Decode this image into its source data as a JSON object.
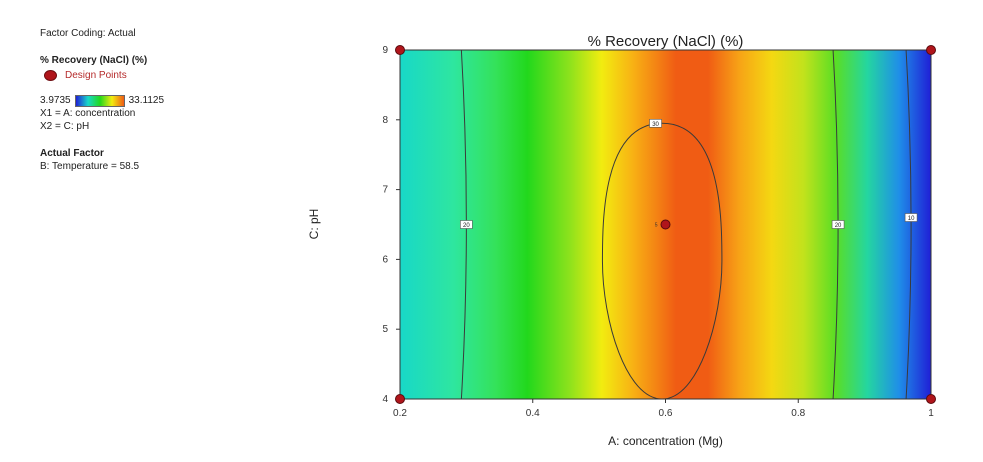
{
  "legend": {
    "factor_coding": "Factor Coding: Actual",
    "response_title": "% Recovery (NaCl) (%)",
    "design_points_label": "Design Points",
    "scale_min": "3.9735",
    "scale_max": "33.1125",
    "x1_label": "X1 = A: concentration",
    "x2_label": "X2 = C: pH",
    "actual_factor_heading": "Actual Factor",
    "actual_factor_value": "B: Temperature = 58.5"
  },
  "colors": {
    "low": "#1f1fd6",
    "mid_low": "#18d8c8",
    "mid": "#22d81c",
    "mid_high": "#f2ec10",
    "high": "#f05c14",
    "design_point": "#b0151b"
  },
  "chart_data": {
    "type": "contour",
    "title": "% Recovery (NaCl) (%)",
    "xlabel": "A: concentration (Mg)",
    "ylabel": "C: pH",
    "xlim": [
      0.2,
      1.0
    ],
    "ylim": [
      4,
      9
    ],
    "xticks": [
      0.2,
      0.4,
      0.6,
      0.8,
      1
    ],
    "xtick_labels": [
      "0.2",
      "0.4",
      "0.6",
      "0.8",
      "1"
    ],
    "yticks": [
      4,
      5,
      6,
      7,
      8,
      9
    ],
    "ytick_labels": [
      "4",
      "5",
      "6",
      "7",
      "8",
      "9"
    ],
    "color_range": [
      3.9735,
      33.1125
    ],
    "contours": [
      {
        "level": 20,
        "label": "20",
        "x_at_center": 0.3,
        "label_y": 6.5
      },
      {
        "level": 30,
        "label": "30",
        "shape": "closed",
        "x_center": 0.595,
        "y_center": 6.0,
        "x_halfwidth": 0.09,
        "y_top": 7.95,
        "y_bottom": 4.0,
        "label_x": 0.585,
        "label_y": 7.95
      },
      {
        "level": 20,
        "label": "20",
        "x_at_center": 0.86,
        "label_y": 6.5
      },
      {
        "level": 10,
        "label": "10",
        "x_at_center": 0.97,
        "label_y": 6.6
      }
    ],
    "design_points": [
      {
        "x": 0.2,
        "y": 9
      },
      {
        "x": 1.0,
        "y": 9
      },
      {
        "x": 0.2,
        "y": 4
      },
      {
        "x": 1.0,
        "y": 4
      },
      {
        "x": 0.6,
        "y": 6.5,
        "replicates": "5"
      }
    ]
  }
}
